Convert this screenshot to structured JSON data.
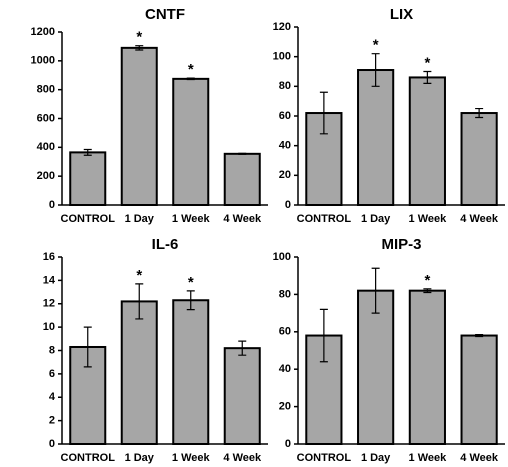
{
  "chart_data": [
    {
      "type": "bar",
      "title": "CNTF",
      "categories": [
        "CONTROL",
        "1 Day",
        "1 Week",
        "4 Week"
      ],
      "values": [
        365,
        1090,
        875,
        355
      ],
      "errors": [
        20,
        15,
        5,
        3
      ],
      "annotations": [
        null,
        "*",
        "*",
        null
      ],
      "color": "#a6a6a6",
      "ylim": [
        0,
        1200
      ],
      "yticks": [
        0,
        200,
        400,
        600,
        800,
        1000,
        1200
      ]
    },
    {
      "type": "bar",
      "title": "LIX",
      "categories": [
        "CONTROL",
        "1 Day",
        "1 Week",
        "4 Week"
      ],
      "values": [
        62,
        91,
        86,
        62
      ],
      "errors": [
        14,
        11,
        4,
        3
      ],
      "annotations": [
        null,
        "*",
        "*",
        null
      ],
      "color": "#a6a6a6",
      "ylim": [
        0,
        120
      ],
      "yticks": [
        0,
        20,
        40,
        60,
        80,
        100,
        120
      ]
    },
    {
      "type": "bar",
      "title": "IL-6",
      "categories": [
        "CONTROL",
        "1 Day",
        "1 Week",
        "4 Week"
      ],
      "values": [
        8.3,
        12.2,
        12.3,
        8.2
      ],
      "errors": [
        1.7,
        1.5,
        0.8,
        0.6
      ],
      "annotations": [
        null,
        "*",
        "*",
        null
      ],
      "color": "#a6a6a6",
      "ylim": [
        0,
        16
      ],
      "yticks": [
        0,
        2,
        4,
        6,
        8,
        10,
        12,
        14,
        16
      ]
    },
    {
      "type": "bar",
      "title": "MIP-3",
      "categories": [
        "CONTROL",
        "1 Day",
        "1 Week",
        "4 Week"
      ],
      "values": [
        58,
        82,
        82,
        58
      ],
      "errors": [
        14,
        12,
        1,
        0.5
      ],
      "annotations": [
        null,
        null,
        "*",
        null
      ],
      "color": "#a6a6a6",
      "ylim": [
        0,
        100
      ],
      "yticks": [
        0,
        20,
        40,
        60,
        80,
        100
      ]
    }
  ]
}
